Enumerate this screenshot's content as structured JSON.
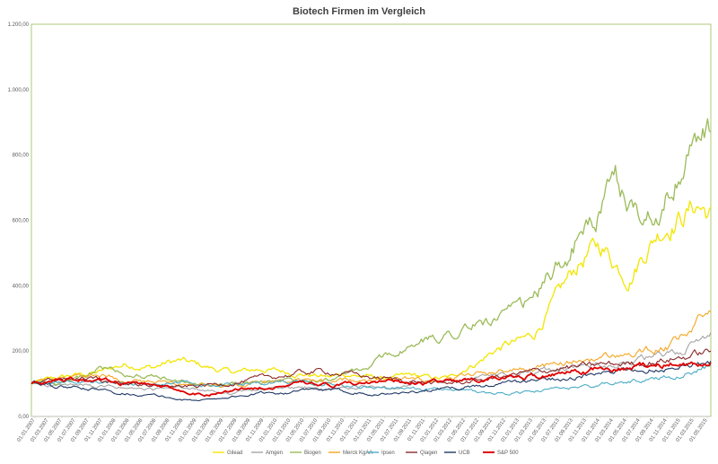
{
  "chart_data": {
    "type": "line",
    "title": "Biotech Firmen im Vergleich",
    "xlabel": "",
    "ylabel": "",
    "ylim": [
      0,
      1200
    ],
    "y_ticks": [
      "0,00",
      "200,00",
      "400,00",
      "600,00",
      "800,00",
      "1.000,00",
      "1.200,00"
    ],
    "x_ticks": [
      "01.01.2007",
      "01.03.2007",
      "01.05.2007",
      "01.07.2007",
      "01.09.2007",
      "01.11.2007",
      "01.01.2008",
      "01.03.2008",
      "01.05.2008",
      "01.07.2008",
      "01.09.2008",
      "01.11.2008",
      "01.01.2009",
      "01.03.2009",
      "01.05.2009",
      "01.07.2009",
      "01.09.2009",
      "01.11.2009",
      "01.01.2010",
      "01.03.2010",
      "01.05.2010",
      "01.07.2010",
      "01.09.2010",
      "01.11.2010",
      "01.01.2011",
      "01.03.2011",
      "01.05.2011",
      "01.07.2011",
      "01.09.2011",
      "01.11.2011",
      "01.01.2012",
      "01.03.2012",
      "01.05.2012",
      "01.07.2012",
      "01.09.2012",
      "01.11.2012",
      "01.01.2013",
      "01.03.2013",
      "01.05.2013",
      "01.07.2013",
      "01.09.2013",
      "01.11.2013",
      "01.01.2014",
      "01.03.2014",
      "01.05.2014",
      "01.07.2014",
      "01.09.2014",
      "01.11.2014",
      "01.01.2015",
      "01.03.2015",
      "01.05.2015"
    ],
    "grid": false,
    "legend_position": "bottom",
    "series": [
      {
        "name": "Gilead",
        "color": "#f2e600",
        "values": [
          100,
          110,
          118,
          125,
          130,
          135,
          150,
          160,
          155,
          150,
          165,
          170,
          160,
          150,
          140,
          135,
          140,
          145,
          140,
          135,
          130,
          125,
          120,
          130,
          125,
          120,
          115,
          120,
          125,
          120,
          115,
          120,
          150,
          170,
          200,
          220,
          230,
          250,
          320,
          380,
          450,
          500,
          520,
          470,
          430,
          500,
          560,
          600,
          620,
          650,
          620
        ]
      },
      {
        "name": "Amgen",
        "color": "#a5a5a5",
        "values": [
          100,
          98,
          96,
          94,
          92,
          88,
          90,
          84,
          82,
          80,
          84,
          88,
          82,
          76,
          72,
          74,
          78,
          82,
          84,
          88,
          86,
          84,
          82,
          86,
          88,
          90,
          92,
          94,
          96,
          100,
          104,
          108,
          112,
          118,
          122,
          126,
          130,
          136,
          140,
          146,
          150,
          156,
          162,
          164,
          168,
          174,
          180,
          188,
          200,
          230,
          258
        ]
      },
      {
        "name": "Biogen",
        "color": "#9bbb59",
        "values": [
          100,
          105,
          108,
          112,
          120,
          150,
          140,
          130,
          125,
          118,
          115,
          108,
          100,
          95,
          98,
          100,
          102,
          105,
          110,
          115,
          120,
          118,
          115,
          125,
          140,
          150,
          185,
          200,
          210,
          230,
          245,
          260,
          270,
          285,
          295,
          310,
          320,
          360,
          420,
          470,
          530,
          580,
          640,
          700,
          650,
          600,
          640,
          700,
          760,
          850,
          870
        ]
      },
      {
        "name": "Merck KgAA",
        "color": "#f5a623",
        "values": [
          100,
          108,
          112,
          118,
          122,
          128,
          120,
          112,
          108,
          104,
          100,
          96,
          92,
          90,
          94,
          98,
          102,
          106,
          110,
          112,
          110,
          108,
          106,
          110,
          114,
          116,
          118,
          120,
          116,
          112,
          115,
          120,
          126,
          132,
          138,
          142,
          146,
          150,
          156,
          162,
          168,
          174,
          180,
          186,
          190,
          196,
          205,
          215,
          240,
          285,
          325
        ]
      },
      {
        "name": "Ipsen",
        "color": "#4bacc6",
        "values": [
          100,
          102,
          104,
          106,
          110,
          108,
          104,
          100,
          98,
          96,
          100,
          104,
          98,
          94,
          92,
          96,
          100,
          104,
          106,
          110,
          112,
          108,
          104,
          100,
          96,
          92,
          88,
          86,
          84,
          82,
          80,
          78,
          76,
          74,
          72,
          72,
          74,
          76,
          80,
          84,
          88,
          92,
          96,
          100,
          106,
          112,
          118,
          124,
          132,
          145,
          160
        ]
      },
      {
        "name": "Qiagen",
        "color": "#8b2a2a",
        "values": [
          100,
          106,
          112,
          116,
          118,
          114,
          110,
          104,
          100,
          96,
          92,
          88,
          92,
          96,
          100,
          104,
          110,
          116,
          122,
          128,
          134,
          138,
          136,
          132,
          126,
          120,
          116,
          112,
          108,
          104,
          100,
          102,
          106,
          112,
          118,
          124,
          130,
          136,
          142,
          148,
          150,
          154,
          158,
          160,
          162,
          166,
          170,
          176,
          182,
          192,
          200
        ]
      },
      {
        "name": "UCB",
        "color": "#1f3864",
        "values": [
          100,
          96,
          92,
          88,
          84,
          80,
          76,
          72,
          68,
          64,
          58,
          52,
          48,
          52,
          58,
          62,
          66,
          70,
          72,
          76,
          78,
          80,
          78,
          76,
          74,
          72,
          70,
          72,
          74,
          78,
          82,
          86,
          90,
          94,
          98,
          102,
          106,
          110,
          114,
          118,
          122,
          126,
          130,
          134,
          138,
          142,
          148,
          152,
          158,
          162,
          165
        ]
      },
      {
        "name": "S&P 500",
        "color": "#e00000",
        "values": [
          100,
          104,
          108,
          110,
          112,
          110,
          106,
          102,
          98,
          94,
          88,
          78,
          70,
          68,
          74,
          80,
          86,
          90,
          94,
          96,
          98,
          94,
          92,
          96,
          100,
          104,
          108,
          110,
          104,
          100,
          104,
          108,
          110,
          114,
          116,
          118,
          122,
          126,
          130,
          134,
          138,
          142,
          146,
          148,
          150,
          154,
          156,
          160,
          162,
          166,
          170
        ]
      }
    ]
  }
}
